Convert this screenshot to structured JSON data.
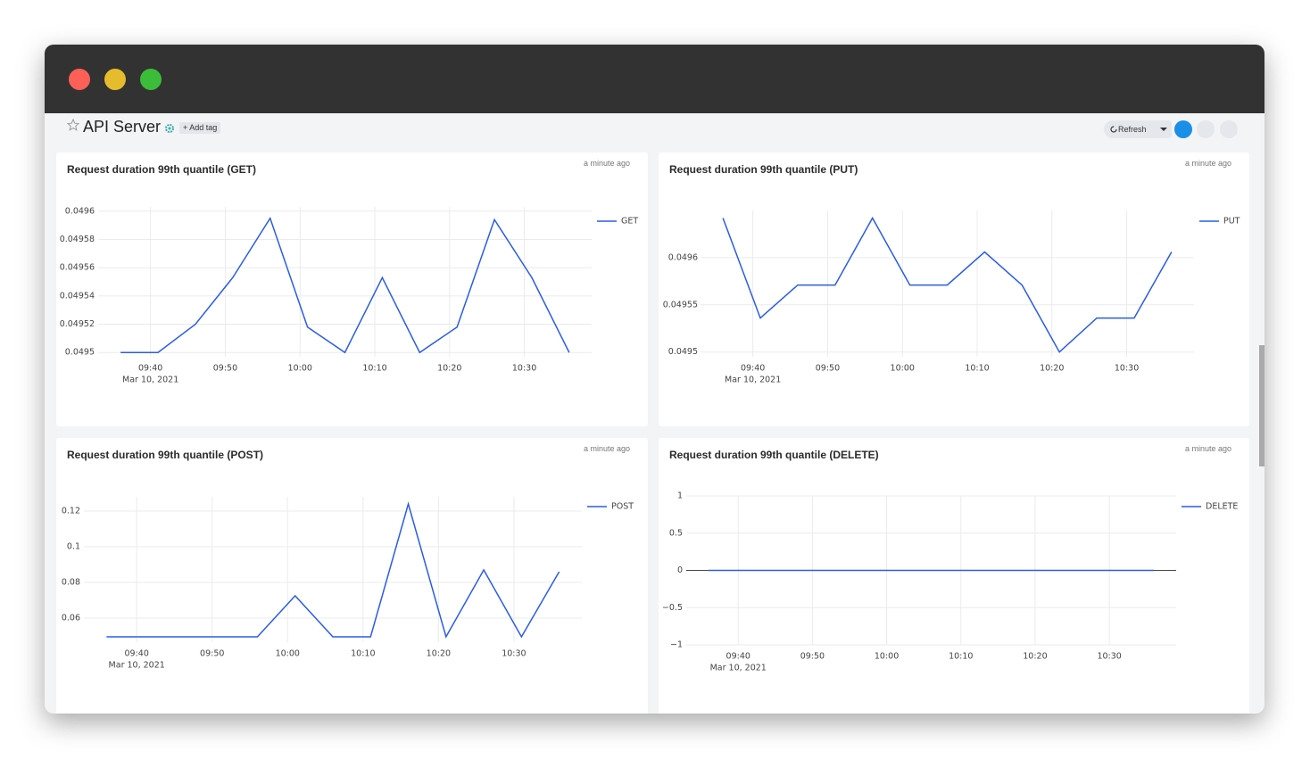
{
  "header": {
    "title": "API Server",
    "add_tag": "+ Add tag",
    "refresh": "Refresh"
  },
  "chart_data": [
    {
      "type": "line",
      "title": "Request duration 99th quantile (GET)",
      "updated": "a minute ago",
      "x": [
        "09:36",
        "09:41",
        "09:46",
        "09:51",
        "09:56",
        "10:01",
        "10:06",
        "10:11",
        "10:16",
        "10:21",
        "10:26",
        "10:31",
        "10:36"
      ],
      "series": [
        {
          "name": "GET",
          "color": "#2a5ce6",
          "values": [
            0.0495,
            0.0495,
            0.04952,
            0.049553,
            0.049595,
            0.049518,
            0.0495,
            0.049553,
            0.0495,
            0.049518,
            0.049594,
            0.049553,
            0.0495
          ]
        }
      ],
      "xlim": [
        "09:33",
        "10:39"
      ],
      "xticks": [
        "09:40",
        "09:50",
        "10:00",
        "10:10",
        "10:20",
        "10:30"
      ],
      "x_date": "Mar 10, 2021",
      "ylim": [
        0.049497,
        0.049603
      ],
      "yticks": [
        0.0495,
        0.04952,
        0.04954,
        0.04956,
        0.04958,
        0.0496
      ],
      "grid": true
    },
    {
      "type": "line",
      "title": "Request duration 99th quantile (PUT)",
      "updated": "a minute ago",
      "x": [
        "09:36",
        "09:41",
        "09:46",
        "09:51",
        "09:56",
        "10:01",
        "10:06",
        "10:11",
        "10:16",
        "10:21",
        "10:26",
        "10:31",
        "10:36"
      ],
      "series": [
        {
          "name": "PUT",
          "color": "#2a5ce6",
          "values": [
            0.049642,
            0.049536,
            0.049571,
            0.049571,
            0.049642,
            0.049571,
            0.049571,
            0.049606,
            0.049571,
            0.0495,
            0.049536,
            0.049536,
            0.049606
          ]
        }
      ],
      "xlim": [
        "09:33",
        "10:39"
      ],
      "xticks": [
        "09:40",
        "09:50",
        "10:00",
        "10:10",
        "10:20",
        "10:30"
      ],
      "x_date": "Mar 10, 2021",
      "ylim": [
        0.049495,
        0.04965
      ],
      "yticks": [
        0.0495,
        0.04955,
        0.0496
      ],
      "grid": true
    },
    {
      "type": "line",
      "title": "Request duration 99th quantile (POST)",
      "updated": "a minute ago",
      "x": [
        "09:36",
        "09:41",
        "09:46",
        "09:51",
        "09:56",
        "10:01",
        "10:06",
        "10:11",
        "10:16",
        "10:21",
        "10:26",
        "10:31",
        "10:36"
      ],
      "series": [
        {
          "name": "POST",
          "color": "#2a5ce6",
          "values": [
            0.0495,
            0.0495,
            0.0495,
            0.0495,
            0.0495,
            0.0725,
            0.0495,
            0.0495,
            0.124,
            0.0495,
            0.087,
            0.0495,
            0.086
          ]
        }
      ],
      "xlim": [
        "09:33",
        "10:39"
      ],
      "xticks": [
        "09:40",
        "09:50",
        "10:00",
        "10:10",
        "10:20",
        "10:30"
      ],
      "x_date": "Mar 10, 2021",
      "ylim": [
        0.0465,
        0.128
      ],
      "yticks": [
        0.06,
        0.08,
        0.1,
        0.12
      ],
      "grid": true
    },
    {
      "type": "line",
      "title": "Request duration 99th quantile (DELETE)",
      "updated": "a minute ago",
      "x": [
        "09:36",
        "09:41",
        "09:46",
        "09:51",
        "09:56",
        "10:01",
        "10:06",
        "10:11",
        "10:16",
        "10:21",
        "10:26",
        "10:31",
        "10:36"
      ],
      "series": [
        {
          "name": "DELETE",
          "color": "#2a5ce6",
          "values": [
            0,
            0,
            0,
            0,
            0,
            0,
            0,
            0,
            0,
            0,
            0,
            0,
            0
          ]
        }
      ],
      "xlim": [
        "09:33",
        "10:39"
      ],
      "xticks": [
        "09:40",
        "09:50",
        "10:00",
        "10:10",
        "10:20",
        "10:30"
      ],
      "x_date": "Mar 10, 2021",
      "ylim": [
        -1,
        1
      ],
      "yticks": [
        {
          "value": -1,
          "label": "−1"
        },
        {
          "value": -0.5,
          "label": "−0.5"
        },
        0,
        0.5,
        1
      ],
      "grid": true,
      "zeroline": true
    }
  ]
}
